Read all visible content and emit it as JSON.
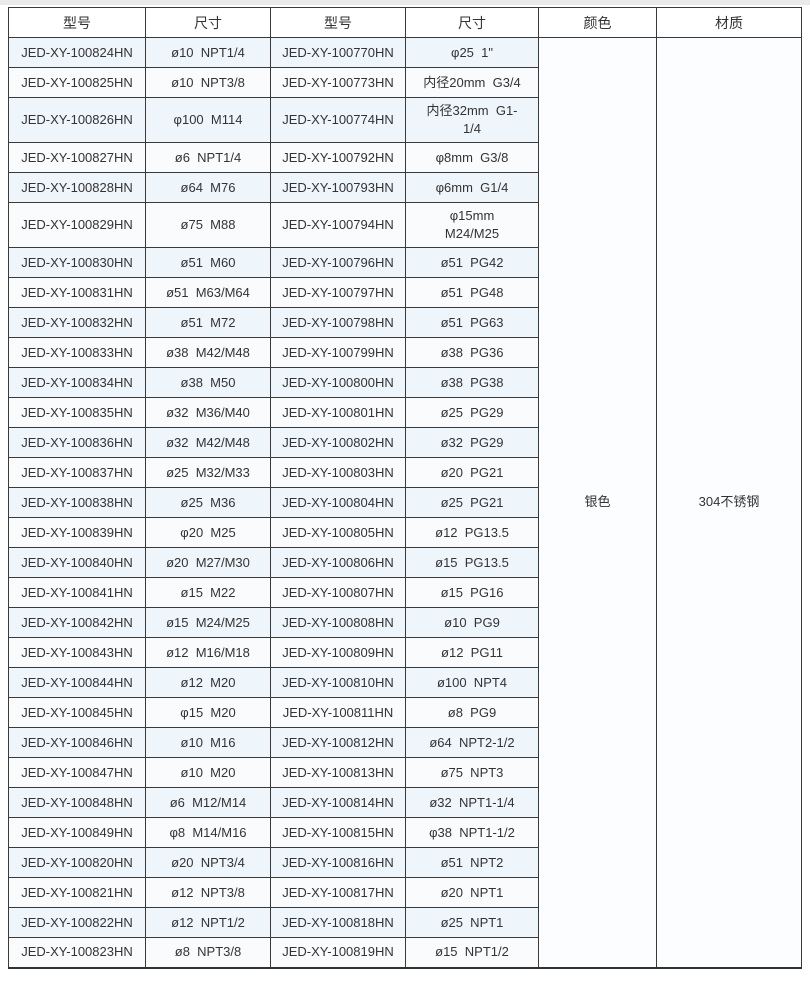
{
  "colors": {
    "border": "#3a3a3a",
    "text": "#333333",
    "stripe_odd": "#eef5fb",
    "stripe_even": "#fafbfc",
    "top_strip": "#e9eaeb"
  },
  "table": {
    "headers": [
      "型号",
      "尺寸",
      "型号",
      "尺寸",
      "颜色",
      "材质"
    ],
    "color_value": "银色",
    "material_value": "304不锈钢",
    "rows": [
      {
        "model1": "JED-XY-100824HN",
        "size1": "ø10  NPT1/4",
        "model2": "JED-XY-100770HN",
        "size2": "φ25  1\""
      },
      {
        "model1": "JED-XY-100825HN",
        "size1": "ø10  NPT3/8",
        "model2": "JED-XY-100773HN",
        "size2": "内径20mm  G3/4"
      },
      {
        "model1": "JED-XY-100826HN",
        "size1": "φ100  M114",
        "model2": "JED-XY-100774HN",
        "size2": "内径32mm  G1-\n1/4"
      },
      {
        "model1": "JED-XY-100827HN",
        "size1": "ø6  NPT1/4",
        "model2": "JED-XY-100792HN",
        "size2": "φ8mm  G3/8"
      },
      {
        "model1": "JED-XY-100828HN",
        "size1": "ø64  M76",
        "model2": "JED-XY-100793HN",
        "size2": "φ6mm  G1/4"
      },
      {
        "model1": "JED-XY-100829HN",
        "size1": "ø75  M88",
        "model2": "JED-XY-100794HN",
        "size2": "φ15mm\nM24/M25"
      },
      {
        "model1": "JED-XY-100830HN",
        "size1": "ø51  M60",
        "model2": "JED-XY-100796HN",
        "size2": "ø51  PG42"
      },
      {
        "model1": "JED-XY-100831HN",
        "size1": "ø51  M63/M64",
        "model2": "JED-XY-100797HN",
        "size2": "ø51  PG48"
      },
      {
        "model1": "JED-XY-100832HN",
        "size1": "ø51  M72",
        "model2": "JED-XY-100798HN",
        "size2": "ø51  PG63"
      },
      {
        "model1": "JED-XY-100833HN",
        "size1": "ø38  M42/M48",
        "model2": "JED-XY-100799HN",
        "size2": "ø38  PG36"
      },
      {
        "model1": "JED-XY-100834HN",
        "size1": "ø38  M50",
        "model2": "JED-XY-100800HN",
        "size2": "ø38  PG38"
      },
      {
        "model1": "JED-XY-100835HN",
        "size1": "ø32  M36/M40",
        "model2": "JED-XY-100801HN",
        "size2": "ø25  PG29"
      },
      {
        "model1": "JED-XY-100836HN",
        "size1": "ø32  M42/M48",
        "model2": "JED-XY-100802HN",
        "size2": "ø32  PG29"
      },
      {
        "model1": "JED-XY-100837HN",
        "size1": "ø25  M32/M33",
        "model2": "JED-XY-100803HN",
        "size2": "ø20  PG21"
      },
      {
        "model1": "JED-XY-100838HN",
        "size1": "ø25  M36",
        "model2": "JED-XY-100804HN",
        "size2": "ø25  PG21"
      },
      {
        "model1": "JED-XY-100839HN",
        "size1": "φ20  M25",
        "model2": "JED-XY-100805HN",
        "size2": "ø12  PG13.5"
      },
      {
        "model1": "JED-XY-100840HN",
        "size1": "ø20  M27/M30",
        "model2": "JED-XY-100806HN",
        "size2": "ø15  PG13.5"
      },
      {
        "model1": "JED-XY-100841HN",
        "size1": "ø15  M22",
        "model2": "JED-XY-100807HN",
        "size2": "ø15  PG16"
      },
      {
        "model1": "JED-XY-100842HN",
        "size1": "ø15  M24/M25",
        "model2": "JED-XY-100808HN",
        "size2": "ø10  PG9"
      },
      {
        "model1": "JED-XY-100843HN",
        "size1": "ø12  M16/M18",
        "model2": "JED-XY-100809HN",
        "size2": "ø12  PG11"
      },
      {
        "model1": "JED-XY-100844HN",
        "size1": "ø12  M20",
        "model2": "JED-XY-100810HN",
        "size2": "ø100  NPT4"
      },
      {
        "model1": "JED-XY-100845HN",
        "size1": "φ15  M20",
        "model2": "JED-XY-100811HN",
        "size2": "ø8  PG9"
      },
      {
        "model1": "JED-XY-100846HN",
        "size1": "ø10  M16",
        "model2": "JED-XY-100812HN",
        "size2": "ø64  NPT2-1/2"
      },
      {
        "model1": "JED-XY-100847HN",
        "size1": "ø10  M20",
        "model2": "JED-XY-100813HN",
        "size2": "ø75  NPT3"
      },
      {
        "model1": "JED-XY-100848HN",
        "size1": "ø6  M12/M14",
        "model2": "JED-XY-100814HN",
        "size2": "ø32  NPT1-1/4"
      },
      {
        "model1": "JED-XY-100849HN",
        "size1": "φ8  M14/M16",
        "model2": "JED-XY-100815HN",
        "size2": "φ38  NPT1-1/2"
      },
      {
        "model1": "JED-XY-100820HN",
        "size1": "ø20  NPT3/4",
        "model2": "JED-XY-100816HN",
        "size2": "ø51  NPT2"
      },
      {
        "model1": "JED-XY-100821HN",
        "size1": "ø12  NPT3/8",
        "model2": "JED-XY-100817HN",
        "size2": "ø20  NPT1"
      },
      {
        "model1": "JED-XY-100822HN",
        "size1": "ø12  NPT1/2",
        "model2": "JED-XY-100818HN",
        "size2": "ø25  NPT1"
      },
      {
        "model1": "JED-XY-100823HN",
        "size1": "ø8  NPT3/8",
        "model2": "JED-XY-100819HN",
        "size2": "ø15  NPT1/2"
      }
    ]
  }
}
